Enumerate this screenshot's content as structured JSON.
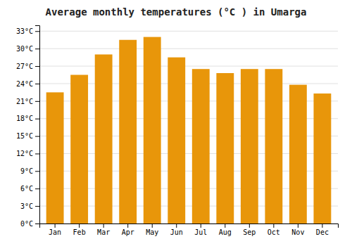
{
  "chart_data": {
    "type": "bar",
    "title": "Average monthly temperatures (°C ) in Umarga",
    "categories": [
      "Jan",
      "Feb",
      "Mar",
      "Apr",
      "May",
      "Jun",
      "Jul",
      "Aug",
      "Sep",
      "Oct",
      "Nov",
      "Dec"
    ],
    "values": [
      22.5,
      25.5,
      29.0,
      31.5,
      32.0,
      28.5,
      26.5,
      25.8,
      26.5,
      26.5,
      23.8,
      22.3
    ],
    "color": "#E8960A",
    "ylim": [
      0,
      34
    ],
    "yticks": [
      {
        "value": 0,
        "label": "0°C"
      },
      {
        "value": 3,
        "label": "3°C"
      },
      {
        "value": 6,
        "label": "6°C"
      },
      {
        "value": 9,
        "label": "9°C"
      },
      {
        "value": 12,
        "label": "12°C"
      },
      {
        "value": 15,
        "label": "15°C"
      },
      {
        "value": 18,
        "label": "18°C"
      },
      {
        "value": 21,
        "label": "21°C"
      },
      {
        "value": 24,
        "label": "24°C"
      },
      {
        "value": 27,
        "label": "27°C"
      },
      {
        "value": 30,
        "label": "30°C"
      },
      {
        "value": 33,
        "label": "33°C"
      }
    ],
    "grid": true
  }
}
